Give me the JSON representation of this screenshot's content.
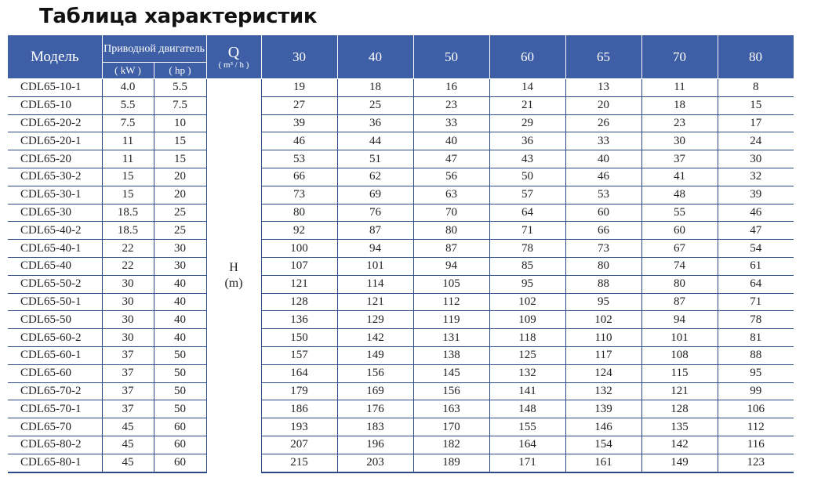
{
  "title": "Таблица характеристик",
  "header": {
    "model": "Модель",
    "motor": "Приводной двигатель",
    "kw": "( kW )",
    "hp": "( hp )",
    "q": "Q",
    "q_unit": "( m³ / h )",
    "flows": [
      "30",
      "40",
      "50",
      "60",
      "65",
      "70",
      "80"
    ]
  },
  "h_label": "H",
  "h_unit": "(m)",
  "rows": [
    {
      "model": "CDL65-10-1",
      "kw": "4.0",
      "hp": "5.5",
      "h": [
        19,
        18,
        16,
        14,
        13,
        11,
        8
      ]
    },
    {
      "model": "CDL65-10",
      "kw": "5.5",
      "hp": "7.5",
      "h": [
        27,
        25,
        23,
        21,
        20,
        18,
        15
      ]
    },
    {
      "model": "CDL65-20-2",
      "kw": "7.5",
      "hp": "10",
      "h": [
        39,
        36,
        33,
        29,
        26,
        23,
        17
      ]
    },
    {
      "model": "CDL65-20-1",
      "kw": "11",
      "hp": "15",
      "h": [
        46,
        44,
        40,
        36,
        33,
        30,
        24
      ]
    },
    {
      "model": "CDL65-20",
      "kw": "11",
      "hp": "15",
      "h": [
        53,
        51,
        47,
        43,
        40,
        37,
        30
      ]
    },
    {
      "model": "CDL65-30-2",
      "kw": "15",
      "hp": "20",
      "h": [
        66,
        62,
        56,
        50,
        46,
        41,
        32
      ]
    },
    {
      "model": "CDL65-30-1",
      "kw": "15",
      "hp": "20",
      "h": [
        73,
        69,
        63,
        57,
        53,
        48,
        39
      ]
    },
    {
      "model": "CDL65-30",
      "kw": "18.5",
      "hp": "25",
      "h": [
        80,
        76,
        70,
        64,
        60,
        55,
        46
      ]
    },
    {
      "model": "CDL65-40-2",
      "kw": "18.5",
      "hp": "25",
      "h": [
        92,
        87,
        80,
        71,
        66,
        60,
        47
      ]
    },
    {
      "model": "CDL65-40-1",
      "kw": "22",
      "hp": "30",
      "h": [
        100,
        94,
        87,
        78,
        73,
        67,
        54
      ]
    },
    {
      "model": "CDL65-40",
      "kw": "22",
      "hp": "30",
      "h": [
        107,
        101,
        94,
        85,
        80,
        74,
        61
      ]
    },
    {
      "model": "CDL65-50-2",
      "kw": "30",
      "hp": "40",
      "h": [
        121,
        114,
        105,
        95,
        88,
        80,
        64
      ]
    },
    {
      "model": "CDL65-50-1",
      "kw": "30",
      "hp": "40",
      "h": [
        128,
        121,
        112,
        102,
        95,
        87,
        71
      ]
    },
    {
      "model": "CDL65-50",
      "kw": "30",
      "hp": "40",
      "h": [
        136,
        129,
        119,
        109,
        102,
        94,
        78
      ]
    },
    {
      "model": "CDL65-60-2",
      "kw": "30",
      "hp": "40",
      "h": [
        150,
        142,
        131,
        118,
        110,
        101,
        81
      ]
    },
    {
      "model": "CDL65-60-1",
      "kw": "37",
      "hp": "50",
      "h": [
        157,
        149,
        138,
        125,
        117,
        108,
        88
      ]
    },
    {
      "model": "CDL65-60",
      "kw": "37",
      "hp": "50",
      "h": [
        164,
        156,
        145,
        132,
        124,
        115,
        95
      ]
    },
    {
      "model": "CDL65-70-2",
      "kw": "37",
      "hp": "50",
      "h": [
        179,
        169,
        156,
        141,
        132,
        121,
        99
      ]
    },
    {
      "model": "CDL65-70-1",
      "kw": "37",
      "hp": "50",
      "h": [
        186,
        176,
        163,
        148,
        139,
        128,
        106
      ]
    },
    {
      "model": "CDL65-70",
      "kw": "45",
      "hp": "60",
      "h": [
        193,
        183,
        170,
        155,
        146,
        135,
        112
      ]
    },
    {
      "model": "CDL65-80-2",
      "kw": "45",
      "hp": "60",
      "h": [
        207,
        196,
        182,
        164,
        154,
        142,
        116
      ]
    },
    {
      "model": "CDL65-80-1",
      "kw": "45",
      "hp": "60",
      "h": [
        215,
        203,
        189,
        171,
        161,
        149,
        123
      ]
    }
  ],
  "colors": {
    "header_bg": "#3e5fa6",
    "rule": "#2b4a86"
  }
}
